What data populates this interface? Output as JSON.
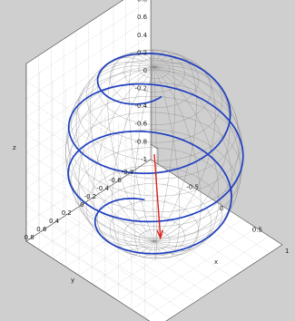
{
  "chart_data": {
    "type": "3d-line",
    "title": "",
    "xlabel": "x",
    "ylabel": "y",
    "zlabel": "z",
    "xlim": [
      -1,
      1
    ],
    "ylim": [
      -1,
      1
    ],
    "zlim": [
      -1,
      1
    ],
    "xticks": [
      "-0.5",
      "0",
      "0.5",
      "1"
    ],
    "yticks": [
      "0.8",
      "0.6",
      "0.4",
      "0.2",
      "0",
      "-0.2",
      "-0.4",
      "-0.6",
      "-0.8"
    ],
    "zticks": [
      "1",
      "0.8",
      "0.6",
      "0.4",
      "0.2",
      "0",
      "-0.2",
      "-0.4",
      "-0.6",
      "-0.8",
      "-1"
    ],
    "grid": true,
    "colors": {
      "background": "#cfcfcf",
      "axes_face": "#ffffff",
      "sphere_mesh": "#7a7a7a",
      "trajectory": "#1f3fbf",
      "vector": "#e0201a"
    },
    "sphere": {
      "radius": 1,
      "lat_lines": 18,
      "lon_lines": 24
    },
    "trajectory": {
      "description_free": true,
      "turns": 3.5,
      "z_start": 0.92,
      "z_end": -0.86
    },
    "vector": {
      "from": [
        0,
        0,
        0
      ],
      "to": [
        0.02,
        -0.08,
        -0.99
      ]
    }
  }
}
